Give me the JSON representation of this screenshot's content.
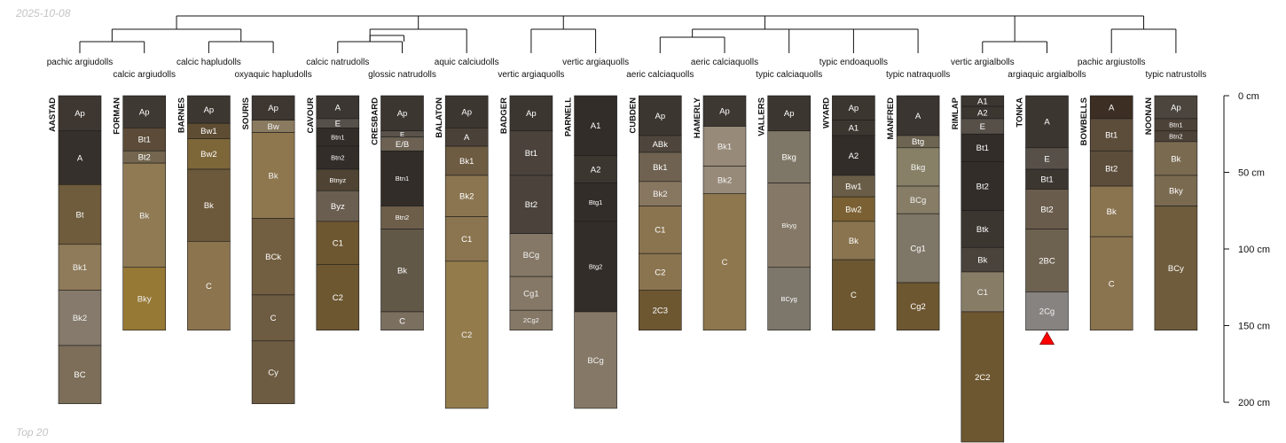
{
  "stamp": "2025-10-08",
  "footer": "Top 20",
  "chart_data": {
    "type": "soil profile sketch with dendrogram",
    "depth_axis": {
      "unit": "cm",
      "ticks": [
        0,
        50,
        100,
        150,
        200
      ],
      "tick_labels": [
        "0 cm",
        "50 cm",
        "100 cm",
        "150 cm",
        "200 cm"
      ]
    },
    "profiles": [
      {
        "id": "AASTAD",
        "taxon": "pachic argiudolls",
        "horizons": [
          {
            "name": "Ap",
            "top": 0,
            "bottom": 23,
            "color": "#3e3731"
          },
          {
            "name": "A",
            "top": 23,
            "bottom": 58,
            "color": "#35302c"
          },
          {
            "name": "Bt",
            "top": 58,
            "bottom": 97,
            "color": "#6e5c3c"
          },
          {
            "name": "Bk1",
            "top": 97,
            "bottom": 127,
            "color": "#8f7a59"
          },
          {
            "name": "Bk2",
            "top": 127,
            "bottom": 163,
            "color": "#857a6b"
          },
          {
            "name": "BC",
            "top": 163,
            "bottom": 201,
            "color": "#7c6e59"
          }
        ]
      },
      {
        "id": "FORMAN",
        "taxon": "calcic argiudolls",
        "horizons": [
          {
            "name": "Ap",
            "top": 0,
            "bottom": 21,
            "color": "#3f3933"
          },
          {
            "name": "Bt1",
            "top": 21,
            "bottom": 36,
            "color": "#5b4b38"
          },
          {
            "name": "Bt2",
            "top": 36,
            "bottom": 44,
            "color": "#74664f"
          },
          {
            "name": "Bk",
            "top": 44,
            "bottom": 112,
            "color": "#8f7a53"
          },
          {
            "name": "Bky",
            "top": 112,
            "bottom": 153,
            "color": "#977936"
          }
        ]
      },
      {
        "id": "BARNES",
        "taxon": "calcic hapludolls",
        "horizons": [
          {
            "name": "Ap",
            "top": 0,
            "bottom": 18,
            "color": "#3d3731"
          },
          {
            "name": "Bw1",
            "top": 18,
            "bottom": 28,
            "color": "#5e4d33"
          },
          {
            "name": "Bw2",
            "top": 28,
            "bottom": 48,
            "color": "#7d6638"
          },
          {
            "name": "Bk",
            "top": 48,
            "bottom": 95,
            "color": "#6c583a"
          },
          {
            "name": "C",
            "top": 95,
            "bottom": 153,
            "color": "#8c744f"
          }
        ]
      },
      {
        "id": "SOURIS",
        "taxon": "oxyaquic hapludolls",
        "horizons": [
          {
            "name": "Ap",
            "top": 0,
            "bottom": 16,
            "color": "#3e3731"
          },
          {
            "name": "Bw",
            "top": 16,
            "bottom": 24,
            "color": "#8a7b60"
          },
          {
            "name": "Bk",
            "top": 24,
            "bottom": 80,
            "color": "#8e774e"
          },
          {
            "name": "BCk",
            "top": 80,
            "bottom": 130,
            "color": "#725e40"
          },
          {
            "name": "C",
            "top": 130,
            "bottom": 160,
            "color": "#6d5b42"
          },
          {
            "name": "Cy",
            "top": 160,
            "bottom": 201,
            "color": "#6d5b42"
          }
        ]
      },
      {
        "id": "CAVOUR",
        "taxon": "calcic natrudolls",
        "horizons": [
          {
            "name": "A",
            "top": 0,
            "bottom": 15,
            "color": "#3b3631"
          },
          {
            "name": "E",
            "top": 15,
            "bottom": 21,
            "color": "#56504a"
          },
          {
            "name": "Btn1",
            "top": 21,
            "bottom": 33,
            "color": "#332d29"
          },
          {
            "name": "Btn2",
            "top": 33,
            "bottom": 48,
            "color": "#332d29"
          },
          {
            "name": "Btnyz",
            "top": 48,
            "bottom": 62,
            "color": "#4f4433"
          },
          {
            "name": "Byz",
            "top": 62,
            "bottom": 82,
            "color": "#6a5e50"
          },
          {
            "name": "C1",
            "top": 82,
            "bottom": 110,
            "color": "#6d5731"
          },
          {
            "name": "C2",
            "top": 110,
            "bottom": 153,
            "color": "#6d5731"
          }
        ]
      },
      {
        "id": "CRESBARD",
        "taxon": "glossic natrudolls",
        "horizons": [
          {
            "name": "Ap",
            "top": 0,
            "bottom": 23,
            "color": "#3c3631"
          },
          {
            "name": "E",
            "top": 23,
            "bottom": 27,
            "color": "#5a534b"
          },
          {
            "name": "E/B",
            "top": 27,
            "bottom": 36,
            "color": "#6c6152"
          },
          {
            "name": "Btn1",
            "top": 36,
            "bottom": 72,
            "color": "#332d29"
          },
          {
            "name": "Btn2",
            "top": 72,
            "bottom": 87,
            "color": "#6d5e4a"
          },
          {
            "name": "Bk",
            "top": 87,
            "bottom": 141,
            "color": "#625848"
          },
          {
            "name": "C",
            "top": 141,
            "bottom": 153,
            "color": "#7b6f60"
          }
        ]
      },
      {
        "id": "BALATON",
        "taxon": "aquic calciudolls",
        "horizons": [
          {
            "name": "Ap",
            "top": 0,
            "bottom": 21,
            "color": "#3c3631"
          },
          {
            "name": "A",
            "top": 21,
            "bottom": 33,
            "color": "#4a4239"
          },
          {
            "name": "Bk1",
            "top": 33,
            "bottom": 52,
            "color": "#6d5b42"
          },
          {
            "name": "Bk2",
            "top": 52,
            "bottom": 79,
            "color": "#8b7550"
          },
          {
            "name": "C1",
            "top": 79,
            "bottom": 108,
            "color": "#8b7550"
          },
          {
            "name": "C2",
            "top": 108,
            "bottom": 204,
            "color": "#937b4c"
          }
        ]
      },
      {
        "id": "BADGER",
        "taxon": "vertic argiaquolls",
        "horizons": [
          {
            "name": "Ap",
            "top": 0,
            "bottom": 23,
            "color": "#3c3631"
          },
          {
            "name": "Bt1",
            "top": 23,
            "bottom": 52,
            "color": "#4b433b"
          },
          {
            "name": "Bt2",
            "top": 52,
            "bottom": 90,
            "color": "#4b433b"
          },
          {
            "name": "BCg",
            "top": 90,
            "bottom": 118,
            "color": "#857866"
          },
          {
            "name": "Cg1",
            "top": 118,
            "bottom": 140,
            "color": "#857866"
          },
          {
            "name": "2Cg2",
            "top": 140,
            "bottom": 153,
            "color": "#857866"
          }
        ]
      },
      {
        "id": "PARNELL",
        "taxon": "vertic argiaquolls",
        "horizons": [
          {
            "name": "A1",
            "top": 0,
            "bottom": 39,
            "color": "#332d2a"
          },
          {
            "name": "A2",
            "top": 39,
            "bottom": 57,
            "color": "#3c3631"
          },
          {
            "name": "Btg1",
            "top": 57,
            "bottom": 82,
            "color": "#332d2a"
          },
          {
            "name": "Btg2",
            "top": 82,
            "bottom": 141,
            "color": "#332d2a"
          },
          {
            "name": "BCg",
            "top": 141,
            "bottom": 204,
            "color": "#857866"
          }
        ]
      },
      {
        "id": "CUBDEN",
        "taxon": "aeric calciaquolls",
        "horizons": [
          {
            "name": "Ap",
            "top": 0,
            "bottom": 26,
            "color": "#3c3631"
          },
          {
            "name": "ABk",
            "top": 26,
            "bottom": 37,
            "color": "#4e463c"
          },
          {
            "name": "Bk1",
            "top": 37,
            "bottom": 56,
            "color": "#6f6250"
          },
          {
            "name": "Bk2",
            "top": 56,
            "bottom": 72,
            "color": "#887760"
          },
          {
            "name": "C1",
            "top": 72,
            "bottom": 103,
            "color": "#8a744f"
          },
          {
            "name": "C2",
            "top": 103,
            "bottom": 127,
            "color": "#8a744f"
          },
          {
            "name": "2C3",
            "top": 127,
            "bottom": 153,
            "color": "#6d5731"
          }
        ]
      },
      {
        "id": "HAMERLY",
        "taxon": "aeric calciaquolls",
        "horizons": [
          {
            "name": "Ap",
            "top": 0,
            "bottom": 20,
            "color": "#3e3833"
          },
          {
            "name": "Bk1",
            "top": 20,
            "bottom": 46,
            "color": "#978a78"
          },
          {
            "name": "Bk2",
            "top": 46,
            "bottom": 64,
            "color": "#978a78"
          },
          {
            "name": "C",
            "top": 64,
            "bottom": 153,
            "color": "#8e774e"
          }
        ]
      },
      {
        "id": "VALLERS",
        "taxon": "typic calciaquolls",
        "horizons": [
          {
            "name": "Ap",
            "top": 0,
            "bottom": 23,
            "color": "#3c3631"
          },
          {
            "name": "Bkg",
            "top": 23,
            "bottom": 57,
            "color": "#7e7666"
          },
          {
            "name": "Bkyg",
            "top": 57,
            "bottom": 112,
            "color": "#857866"
          },
          {
            "name": "BCyg",
            "top": 112,
            "bottom": 153,
            "color": "#7c766b"
          }
        ]
      },
      {
        "id": "WYARD",
        "taxon": "typic endoaquolls",
        "horizons": [
          {
            "name": "Ap",
            "top": 0,
            "bottom": 16,
            "color": "#3c3631"
          },
          {
            "name": "A1",
            "top": 16,
            "bottom": 26,
            "color": "#3c3631"
          },
          {
            "name": "A2",
            "top": 26,
            "bottom": 52,
            "color": "#332d2a"
          },
          {
            "name": "Bw1",
            "top": 52,
            "bottom": 66,
            "color": "#6a5d48"
          },
          {
            "name": "Bw2",
            "top": 66,
            "bottom": 82,
            "color": "#7a6032"
          },
          {
            "name": "Bk",
            "top": 82,
            "bottom": 107,
            "color": "#8a744f"
          },
          {
            "name": "C",
            "top": 107,
            "bottom": 153,
            "color": "#6d5731"
          }
        ]
      },
      {
        "id": "MANFRED",
        "taxon": "typic natraquolls",
        "horizons": [
          {
            "name": "A",
            "top": 0,
            "bottom": 26,
            "color": "#3a3531"
          },
          {
            "name": "Btg",
            "top": 26,
            "bottom": 34,
            "color": "#6d6452"
          },
          {
            "name": "Bkg",
            "top": 34,
            "bottom": 59,
            "color": "#878066"
          },
          {
            "name": "BCg",
            "top": 59,
            "bottom": 77,
            "color": "#877c65"
          },
          {
            "name": "Cg1",
            "top": 77,
            "bottom": 122,
            "color": "#7e7666"
          },
          {
            "name": "Cg2",
            "top": 122,
            "bottom": 153,
            "color": "#6d5731"
          }
        ]
      },
      {
        "id": "RIMLAP",
        "taxon": "vertic argialbolls",
        "horizons": [
          {
            "name": "A1",
            "top": 0,
            "bottom": 7,
            "color": "#3c3631"
          },
          {
            "name": "A2",
            "top": 7,
            "bottom": 15,
            "color": "#3c3631"
          },
          {
            "name": "E",
            "top": 15,
            "bottom": 25,
            "color": "#575049"
          },
          {
            "name": "Bt1",
            "top": 25,
            "bottom": 43,
            "color": "#332d2a"
          },
          {
            "name": "Bt2",
            "top": 43,
            "bottom": 75,
            "color": "#332d2a"
          },
          {
            "name": "Btk",
            "top": 75,
            "bottom": 99,
            "color": "#3c3631"
          },
          {
            "name": "Bk",
            "top": 99,
            "bottom": 115,
            "color": "#4a433b"
          },
          {
            "name": "C1",
            "top": 115,
            "bottom": 141,
            "color": "#877c66"
          },
          {
            "name": "2C2",
            "top": 141,
            "bottom": 226,
            "color": "#6d5731"
          }
        ]
      },
      {
        "id": "TONKA",
        "taxon": "argiaquic argialbolls",
        "horizons": [
          {
            "name": "A",
            "top": 0,
            "bottom": 34,
            "color": "#3c3631"
          },
          {
            "name": "E",
            "top": 34,
            "bottom": 48,
            "color": "#575049"
          },
          {
            "name": "Bt1",
            "top": 48,
            "bottom": 61,
            "color": "#3c3631"
          },
          {
            "name": "Bt2",
            "top": 61,
            "bottom": 87,
            "color": "#6a5c4c"
          },
          {
            "name": "2BC",
            "top": 87,
            "bottom": 128,
            "color": "#6d6150"
          },
          {
            "name": "2Cg",
            "top": 128,
            "bottom": 153,
            "color": "#878380"
          }
        ]
      },
      {
        "id": "BOWBELLS",
        "taxon": "pachic argiustolls",
        "horizons": [
          {
            "name": "A",
            "top": 0,
            "bottom": 15,
            "color": "#3c2e23"
          },
          {
            "name": "Bt1",
            "top": 15,
            "bottom": 36,
            "color": "#5c4d3a"
          },
          {
            "name": "Bt2",
            "top": 36,
            "bottom": 59,
            "color": "#5c4d3a"
          },
          {
            "name": "Bk",
            "top": 59,
            "bottom": 92,
            "color": "#8a744f"
          },
          {
            "name": "C",
            "top": 92,
            "bottom": 153,
            "color": "#8a744f"
          }
        ]
      },
      {
        "id": "NOONAN",
        "taxon": "typic natrustolls",
        "horizons": [
          {
            "name": "Ap",
            "top": 0,
            "bottom": 15,
            "color": "#4b453e"
          },
          {
            "name": "Btn1",
            "top": 15,
            "bottom": 23,
            "color": "#4d4238"
          },
          {
            "name": "Btn2",
            "top": 23,
            "bottom": 30,
            "color": "#4d4238"
          },
          {
            "name": "Bk",
            "top": 30,
            "bottom": 52,
            "color": "#7a6a50"
          },
          {
            "name": "Bky",
            "top": 52,
            "bottom": 72,
            "color": "#7a6a50"
          },
          {
            "name": "BCy",
            "top": 72,
            "bottom": 153,
            "color": "#6e5c3c"
          }
        ]
      }
    ],
    "marker": {
      "profile": "TONKA",
      "depth": 153,
      "shape": "triangle",
      "color": "#ff0000"
    }
  }
}
